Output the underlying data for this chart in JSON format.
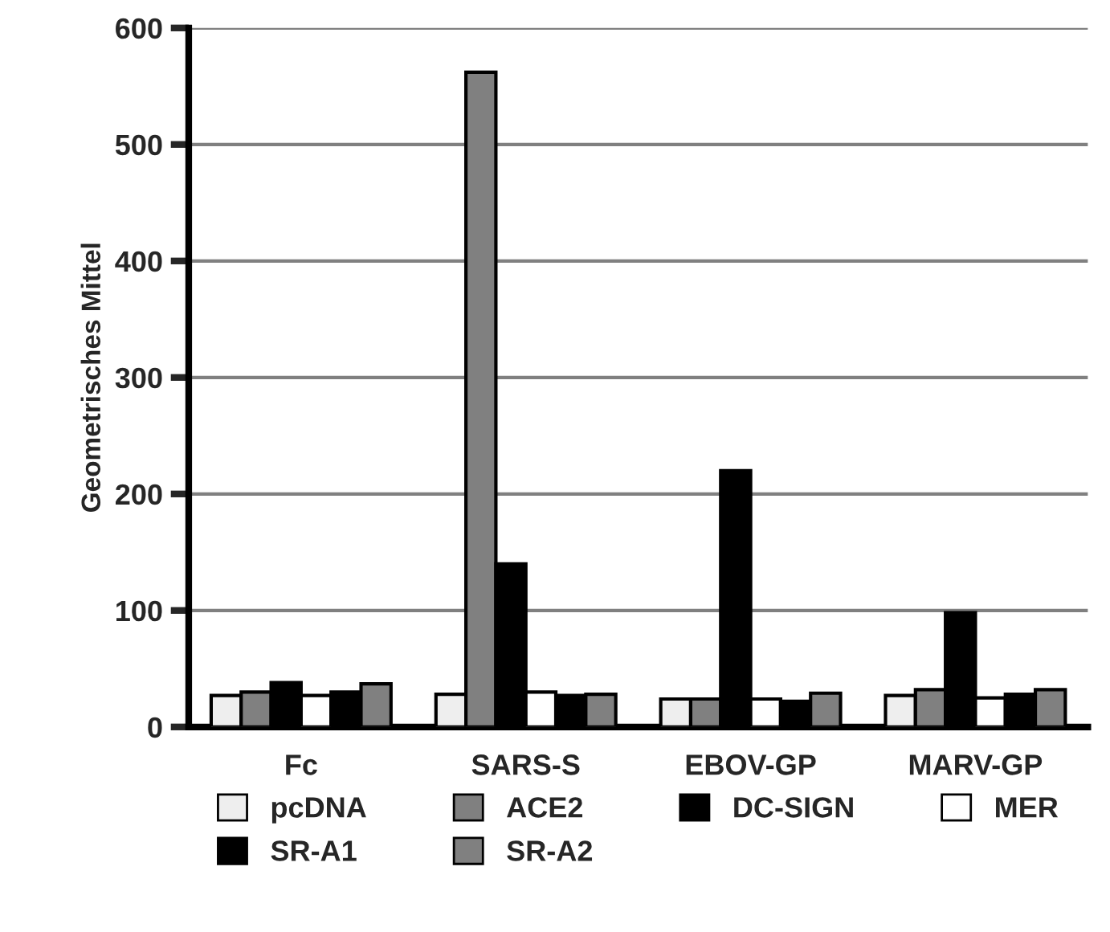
{
  "chart_data": {
    "type": "bar",
    "ylabel": "Geometrisches Mittel",
    "categories": [
      "Fc",
      "SARS-S",
      "EBOV-GP",
      "MARV-GP"
    ],
    "series": [
      {
        "name": "pcDNA",
        "color": "#eeeeee",
        "values": [
          27,
          28,
          24,
          27
        ]
      },
      {
        "name": "ACE2",
        "color": "#808080",
        "values": [
          30,
          562,
          24,
          32
        ]
      },
      {
        "name": "DC-SIGN",
        "color": "#000000",
        "values": [
          38,
          140,
          220,
          98
        ]
      },
      {
        "name": "MER",
        "color": "#ffffff",
        "values": [
          27,
          30,
          24,
          25
        ]
      },
      {
        "name": "SR-A1",
        "color": "#000000",
        "values": [
          30,
          27,
          22,
          28
        ]
      },
      {
        "name": "SR-A2",
        "color": "#808080",
        "values": [
          37,
          28,
          29,
          32
        ]
      }
    ],
    "ylim": [
      0,
      600
    ],
    "yticks": [
      0,
      100,
      200,
      300,
      400,
      500,
      600
    ],
    "grid": "y",
    "legend": "bottom"
  }
}
